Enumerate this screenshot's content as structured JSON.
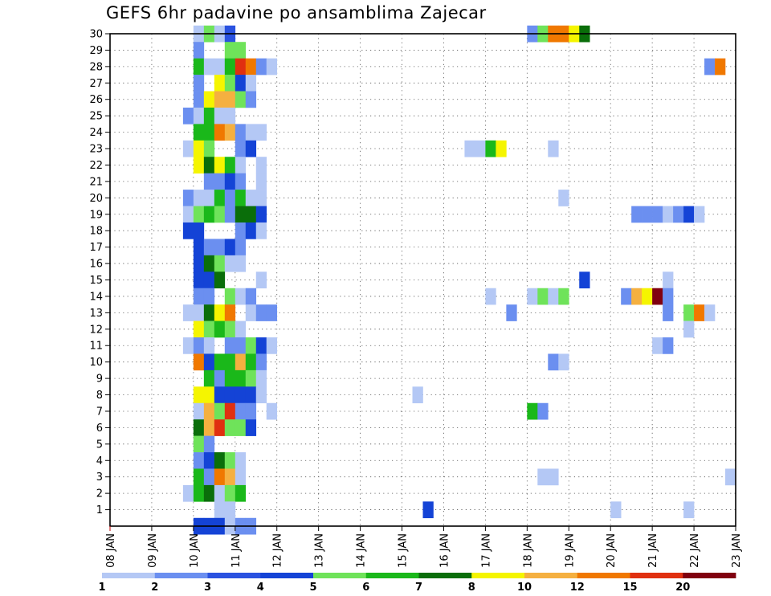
{
  "chart_data": {
    "type": "heatmap",
    "title": "GEFS 6hr padavine po ansamblima Zajecar",
    "xlabel": "",
    "ylabel": "",
    "x_ticks": [
      "08 JAN",
      "09 JAN",
      "10 JAN",
      "11 JAN",
      "12 JAN",
      "13 JAN",
      "14 JAN",
      "15 JAN",
      "16 JAN",
      "17 JAN",
      "18 JAN",
      "19 JAN",
      "20 JAN",
      "21 JAN",
      "22 JAN",
      "23 JAN"
    ],
    "y_ticks": [
      1,
      2,
      3,
      4,
      5,
      6,
      7,
      8,
      9,
      10,
      11,
      12,
      13,
      14,
      15,
      16,
      17,
      18,
      19,
      20,
      21,
      22,
      23,
      24,
      25,
      26,
      27,
      28,
      29,
      30
    ],
    "x_range_days": [
      0,
      15
    ],
    "y_range": [
      0,
      30
    ],
    "time_step_hours": 6,
    "grid": "dotted",
    "colorbar": {
      "ticks": [
        "1",
        "2",
        "3",
        "4",
        "5",
        "6",
        "7",
        "8",
        "10",
        "12",
        "15",
        "20"
      ],
      "colors": [
        "#b4c8f5",
        "#6b8ff0",
        "#2a52e0",
        "#1443d6",
        "#6fe35a",
        "#1ab81a",
        "#0a6e0a",
        "#f5f500",
        "#f5b040",
        "#f07800",
        "#e03010",
        "#800010"
      ]
    },
    "cells": [
      {
        "member": 30,
        "day": 2.0,
        "level": 1
      },
      {
        "member": 30,
        "day": 2.25,
        "level": 5
      },
      {
        "member": 30,
        "day": 2.5,
        "level": 1
      },
      {
        "member": 30,
        "day": 2.75,
        "level": 3
      },
      {
        "member": 30,
        "day": 10.0,
        "level": 2
      },
      {
        "member": 30,
        "day": 10.25,
        "level": 5
      },
      {
        "member": 30,
        "day": 10.5,
        "level": 10
      },
      {
        "member": 30,
        "day": 10.75,
        "level": 10
      },
      {
        "member": 30,
        "day": 11.0,
        "level": 8
      },
      {
        "member": 30,
        "day": 11.25,
        "level": 7
      },
      {
        "member": 29,
        "day": 2.0,
        "level": 2
      },
      {
        "member": 29,
        "day": 2.75,
        "level": 5
      },
      {
        "member": 29,
        "day": 3.0,
        "level": 5
      },
      {
        "member": 28,
        "day": 2.0,
        "level": 6
      },
      {
        "member": 28,
        "day": 2.25,
        "level": 1
      },
      {
        "member": 28,
        "day": 2.5,
        "level": 1
      },
      {
        "member": 28,
        "day": 2.75,
        "level": 6
      },
      {
        "member": 28,
        "day": 3.0,
        "level": 11
      },
      {
        "member": 28,
        "day": 3.25,
        "level": 10
      },
      {
        "member": 28,
        "day": 3.5,
        "level": 2
      },
      {
        "member": 28,
        "day": 3.75,
        "level": 1
      },
      {
        "member": 28,
        "day": 14.25,
        "level": 2
      },
      {
        "member": 28,
        "day": 14.5,
        "level": 10
      },
      {
        "member": 27,
        "day": 2.0,
        "level": 2
      },
      {
        "member": 27,
        "day": 2.5,
        "level": 8
      },
      {
        "member": 27,
        "day": 2.75,
        "level": 5
      },
      {
        "member": 27,
        "day": 3.0,
        "level": 4
      },
      {
        "member": 27,
        "day": 3.25,
        "level": 1
      },
      {
        "member": 26,
        "day": 2.0,
        "level": 2
      },
      {
        "member": 26,
        "day": 2.25,
        "level": 8
      },
      {
        "member": 26,
        "day": 2.5,
        "level": 9
      },
      {
        "member": 26,
        "day": 2.75,
        "level": 9
      },
      {
        "member": 26,
        "day": 3.0,
        "level": 5
      },
      {
        "member": 26,
        "day": 3.25,
        "level": 2
      },
      {
        "member": 25,
        "day": 1.75,
        "level": 2
      },
      {
        "member": 25,
        "day": 2.0,
        "level": 1
      },
      {
        "member": 25,
        "day": 2.25,
        "level": 6
      },
      {
        "member": 25,
        "day": 2.5,
        "level": 1
      },
      {
        "member": 25,
        "day": 2.75,
        "level": 1
      },
      {
        "member": 24,
        "day": 2.0,
        "level": 6
      },
      {
        "member": 24,
        "day": 2.25,
        "level": 6
      },
      {
        "member": 24,
        "day": 2.5,
        "level": 10
      },
      {
        "member": 24,
        "day": 2.75,
        "level": 9
      },
      {
        "member": 24,
        "day": 3.0,
        "level": 2
      },
      {
        "member": 24,
        "day": 3.25,
        "level": 1
      },
      {
        "member": 24,
        "day": 3.5,
        "level": 1
      },
      {
        "member": 23,
        "day": 1.75,
        "level": 1
      },
      {
        "member": 23,
        "day": 2.0,
        "level": 8
      },
      {
        "member": 23,
        "day": 2.25,
        "level": 5
      },
      {
        "member": 23,
        "day": 3.0,
        "level": 2
      },
      {
        "member": 23,
        "day": 3.25,
        "level": 4
      },
      {
        "member": 23,
        "day": 8.5,
        "level": 1
      },
      {
        "member": 23,
        "day": 8.75,
        "level": 1
      },
      {
        "member": 23,
        "day": 9.0,
        "level": 6
      },
      {
        "member": 23,
        "day": 9.25,
        "level": 8
      },
      {
        "member": 23,
        "day": 10.5,
        "level": 1
      },
      {
        "member": 22,
        "day": 2.0,
        "level": 8
      },
      {
        "member": 22,
        "day": 2.25,
        "level": 7
      },
      {
        "member": 22,
        "day": 2.5,
        "level": 8
      },
      {
        "member": 22,
        "day": 2.75,
        "level": 6
      },
      {
        "member": 22,
        "day": 3.0,
        "level": 1
      },
      {
        "member": 22,
        "day": 3.5,
        "level": 1
      },
      {
        "member": 21,
        "day": 2.25,
        "level": 2
      },
      {
        "member": 21,
        "day": 2.5,
        "level": 2
      },
      {
        "member": 21,
        "day": 2.75,
        "level": 4
      },
      {
        "member": 21,
        "day": 3.0,
        "level": 2
      },
      {
        "member": 21,
        "day": 3.5,
        "level": 1
      },
      {
        "member": 20,
        "day": 1.75,
        "level": 2
      },
      {
        "member": 20,
        "day": 2.0,
        "level": 1
      },
      {
        "member": 20,
        "day": 2.25,
        "level": 1
      },
      {
        "member": 20,
        "day": 2.5,
        "level": 6
      },
      {
        "member": 20,
        "day": 2.75,
        "level": 2
      },
      {
        "member": 20,
        "day": 3.0,
        "level": 6
      },
      {
        "member": 20,
        "day": 3.25,
        "level": 1
      },
      {
        "member": 20,
        "day": 3.5,
        "level": 1
      },
      {
        "member": 20,
        "day": 10.75,
        "level": 1
      },
      {
        "member": 19,
        "day": 1.75,
        "level": 1
      },
      {
        "member": 19,
        "day": 2.0,
        "level": 5
      },
      {
        "member": 19,
        "day": 2.25,
        "level": 6
      },
      {
        "member": 19,
        "day": 2.5,
        "level": 5
      },
      {
        "member": 19,
        "day": 2.75,
        "level": 2
      },
      {
        "member": 19,
        "day": 3.0,
        "level": 7
      },
      {
        "member": 19,
        "day": 3.25,
        "level": 7
      },
      {
        "member": 19,
        "day": 3.5,
        "level": 4
      },
      {
        "member": 19,
        "day": 12.5,
        "level": 2
      },
      {
        "member": 19,
        "day": 12.75,
        "level": 2
      },
      {
        "member": 19,
        "day": 13.0,
        "level": 2
      },
      {
        "member": 19,
        "day": 13.25,
        "level": 1
      },
      {
        "member": 19,
        "day": 13.5,
        "level": 2
      },
      {
        "member": 19,
        "day": 13.75,
        "level": 4
      },
      {
        "member": 19,
        "day": 14.0,
        "level": 1
      },
      {
        "member": 18,
        "day": 1.75,
        "level": 4
      },
      {
        "member": 18,
        "day": 2.0,
        "level": 4
      },
      {
        "member": 18,
        "day": 3.0,
        "level": 2
      },
      {
        "member": 18,
        "day": 3.25,
        "level": 4
      },
      {
        "member": 18,
        "day": 3.5,
        "level": 1
      },
      {
        "member": 17,
        "day": 2.0,
        "level": 4
      },
      {
        "member": 17,
        "day": 2.25,
        "level": 2
      },
      {
        "member": 17,
        "day": 2.5,
        "level": 2
      },
      {
        "member": 17,
        "day": 2.75,
        "level": 4
      },
      {
        "member": 17,
        "day": 3.0,
        "level": 2
      },
      {
        "member": 16,
        "day": 2.0,
        "level": 4
      },
      {
        "member": 16,
        "day": 2.25,
        "level": 7
      },
      {
        "member": 16,
        "day": 2.5,
        "level": 5
      },
      {
        "member": 16,
        "day": 2.75,
        "level": 1
      },
      {
        "member": 16,
        "day": 3.0,
        "level": 1
      },
      {
        "member": 15,
        "day": 2.0,
        "level": 4
      },
      {
        "member": 15,
        "day": 2.25,
        "level": 4
      },
      {
        "member": 15,
        "day": 2.5,
        "level": 7
      },
      {
        "member": 15,
        "day": 3.5,
        "level": 1
      },
      {
        "member": 15,
        "day": 11.25,
        "level": 4
      },
      {
        "member": 15,
        "day": 13.25,
        "level": 1
      },
      {
        "member": 14,
        "day": 2.0,
        "level": 2
      },
      {
        "member": 14,
        "day": 2.25,
        "level": 2
      },
      {
        "member": 14,
        "day": 2.75,
        "level": 5
      },
      {
        "member": 14,
        "day": 3.0,
        "level": 1
      },
      {
        "member": 14,
        "day": 3.25,
        "level": 2
      },
      {
        "member": 14,
        "day": 9.0,
        "level": 1
      },
      {
        "member": 14,
        "day": 10.0,
        "level": 1
      },
      {
        "member": 14,
        "day": 10.25,
        "level": 5
      },
      {
        "member": 14,
        "day": 10.5,
        "level": 1
      },
      {
        "member": 14,
        "day": 10.75,
        "level": 5
      },
      {
        "member": 14,
        "day": 12.25,
        "level": 2
      },
      {
        "member": 14,
        "day": 12.5,
        "level": 9
      },
      {
        "member": 14,
        "day": 12.75,
        "level": 8
      },
      {
        "member": 14,
        "day": 13.0,
        "level": 12
      },
      {
        "member": 14,
        "day": 13.25,
        "level": 2
      },
      {
        "member": 13,
        "day": 1.75,
        "level": 1
      },
      {
        "member": 13,
        "day": 2.0,
        "level": 1
      },
      {
        "member": 13,
        "day": 2.25,
        "level": 7
      },
      {
        "member": 13,
        "day": 2.5,
        "level": 8
      },
      {
        "member": 13,
        "day": 2.75,
        "level": 10
      },
      {
        "member": 13,
        "day": 3.25,
        "level": 1
      },
      {
        "member": 13,
        "day": 3.5,
        "level": 2
      },
      {
        "member": 13,
        "day": 3.75,
        "level": 2
      },
      {
        "member": 13,
        "day": 9.5,
        "level": 2
      },
      {
        "member": 13,
        "day": 13.25,
        "level": 2
      },
      {
        "member": 13,
        "day": 13.75,
        "level": 5
      },
      {
        "member": 13,
        "day": 14.0,
        "level": 10
      },
      {
        "member": 13,
        "day": 14.25,
        "level": 1
      },
      {
        "member": 12,
        "day": 2.0,
        "level": 8
      },
      {
        "member": 12,
        "day": 2.25,
        "level": 5
      },
      {
        "member": 12,
        "day": 2.5,
        "level": 6
      },
      {
        "member": 12,
        "day": 2.75,
        "level": 5
      },
      {
        "member": 12,
        "day": 3.0,
        "level": 1
      },
      {
        "member": 12,
        "day": 13.75,
        "level": 1
      },
      {
        "member": 11,
        "day": 1.75,
        "level": 1
      },
      {
        "member": 11,
        "day": 2.0,
        "level": 2
      },
      {
        "member": 11,
        "day": 2.25,
        "level": 1
      },
      {
        "member": 11,
        "day": 2.75,
        "level": 2
      },
      {
        "member": 11,
        "day": 3.0,
        "level": 2
      },
      {
        "member": 11,
        "day": 3.25,
        "level": 5
      },
      {
        "member": 11,
        "day": 3.5,
        "level": 4
      },
      {
        "member": 11,
        "day": 3.75,
        "level": 1
      },
      {
        "member": 11,
        "day": 13.0,
        "level": 1
      },
      {
        "member": 11,
        "day": 13.25,
        "level": 2
      },
      {
        "member": 10,
        "day": 2.0,
        "level": 10
      },
      {
        "member": 10,
        "day": 2.25,
        "level": 4
      },
      {
        "member": 10,
        "day": 2.5,
        "level": 6
      },
      {
        "member": 10,
        "day": 2.75,
        "level": 6
      },
      {
        "member": 10,
        "day": 3.0,
        "level": 9
      },
      {
        "member": 10,
        "day": 3.25,
        "level": 6
      },
      {
        "member": 10,
        "day": 3.5,
        "level": 2
      },
      {
        "member": 10,
        "day": 10.5,
        "level": 2
      },
      {
        "member": 10,
        "day": 10.75,
        "level": 1
      },
      {
        "member": 9,
        "day": 2.25,
        "level": 6
      },
      {
        "member": 9,
        "day": 2.5,
        "level": 2
      },
      {
        "member": 9,
        "day": 2.75,
        "level": 6
      },
      {
        "member": 9,
        "day": 3.0,
        "level": 6
      },
      {
        "member": 9,
        "day": 3.25,
        "level": 5
      },
      {
        "member": 9,
        "day": 3.5,
        "level": 1
      },
      {
        "member": 8,
        "day": 2.0,
        "level": 8
      },
      {
        "member": 8,
        "day": 2.25,
        "level": 8
      },
      {
        "member": 8,
        "day": 2.5,
        "level": 4
      },
      {
        "member": 8,
        "day": 2.75,
        "level": 4
      },
      {
        "member": 8,
        "day": 3.0,
        "level": 4
      },
      {
        "member": 8,
        "day": 3.25,
        "level": 4
      },
      {
        "member": 8,
        "day": 3.5,
        "level": 1
      },
      {
        "member": 8,
        "day": 7.25,
        "level": 1
      },
      {
        "member": 7,
        "day": 2.0,
        "level": 1
      },
      {
        "member": 7,
        "day": 2.25,
        "level": 9
      },
      {
        "member": 7,
        "day": 2.5,
        "level": 5
      },
      {
        "member": 7,
        "day": 2.75,
        "level": 11
      },
      {
        "member": 7,
        "day": 3.0,
        "level": 2
      },
      {
        "member": 7,
        "day": 3.25,
        "level": 2
      },
      {
        "member": 7,
        "day": 3.75,
        "level": 1
      },
      {
        "member": 7,
        "day": 10.0,
        "level": 6
      },
      {
        "member": 7,
        "day": 10.25,
        "level": 2
      },
      {
        "member": 6,
        "day": 2.0,
        "level": 7
      },
      {
        "member": 6,
        "day": 2.25,
        "level": 9
      },
      {
        "member": 6,
        "day": 2.5,
        "level": 11
      },
      {
        "member": 6,
        "day": 2.75,
        "level": 5
      },
      {
        "member": 6,
        "day": 3.0,
        "level": 5
      },
      {
        "member": 6,
        "day": 3.25,
        "level": 4
      },
      {
        "member": 5,
        "day": 2.0,
        "level": 5
      },
      {
        "member": 5,
        "day": 2.25,
        "level": 2
      },
      {
        "member": 4,
        "day": 2.0,
        "level": 2
      },
      {
        "member": 4,
        "day": 2.25,
        "level": 4
      },
      {
        "member": 4,
        "day": 2.5,
        "level": 7
      },
      {
        "member": 4,
        "day": 2.75,
        "level": 5
      },
      {
        "member": 4,
        "day": 3.0,
        "level": 1
      },
      {
        "member": 3,
        "day": 2.0,
        "level": 6
      },
      {
        "member": 3,
        "day": 2.25,
        "level": 2
      },
      {
        "member": 3,
        "day": 2.5,
        "level": 10
      },
      {
        "member": 3,
        "day": 2.75,
        "level": 9
      },
      {
        "member": 3,
        "day": 3.0,
        "level": 1
      },
      {
        "member": 3,
        "day": 10.25,
        "level": 1
      },
      {
        "member": 3,
        "day": 10.5,
        "level": 1
      },
      {
        "member": 3,
        "day": 14.75,
        "level": 1
      },
      {
        "member": 2,
        "day": 1.75,
        "level": 1
      },
      {
        "member": 2,
        "day": 2.0,
        "level": 6
      },
      {
        "member": 2,
        "day": 2.25,
        "level": 7
      },
      {
        "member": 2,
        "day": 2.5,
        "level": 1
      },
      {
        "member": 2,
        "day": 2.75,
        "level": 5
      },
      {
        "member": 2,
        "day": 3.0,
        "level": 6
      },
      {
        "member": 1,
        "day": 2.5,
        "level": 1
      },
      {
        "member": 1,
        "day": 2.75,
        "level": 1
      },
      {
        "member": 1,
        "day": 7.5,
        "level": 4
      },
      {
        "member": 1,
        "day": 12.0,
        "level": 1
      },
      {
        "member": 1,
        "day": 13.75,
        "level": 1
      },
      {
        "member": 0,
        "day": 2.0,
        "level": 4
      },
      {
        "member": 0,
        "day": 2.25,
        "level": 4
      },
      {
        "member": 0,
        "day": 2.5,
        "level": 4
      },
      {
        "member": 0,
        "day": 2.75,
        "level": 1
      },
      {
        "member": 0,
        "day": 3.0,
        "level": 2
      },
      {
        "member": 0,
        "day": 3.25,
        "level": 2
      }
    ]
  }
}
